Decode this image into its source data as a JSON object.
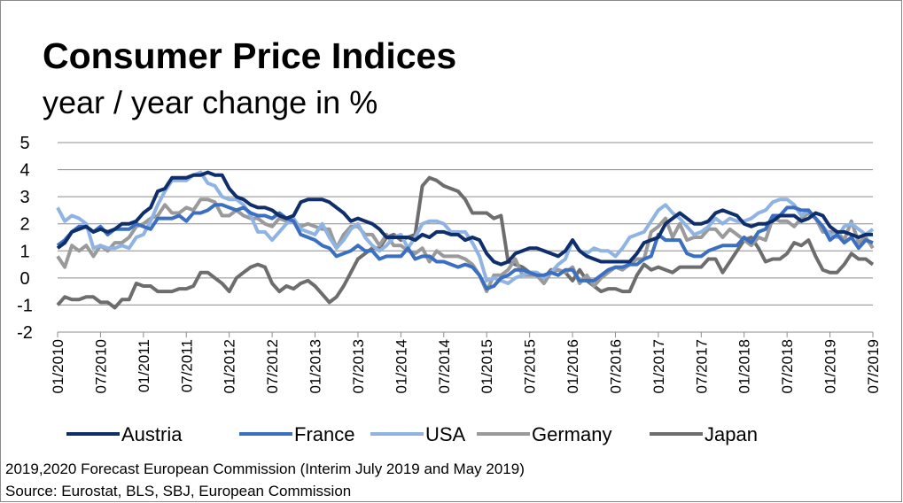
{
  "chart_data": {
    "type": "line",
    "title": "Consumer Price Indices",
    "subtitle": "year / year change in %",
    "notes": [
      "2019,2020 Forecast European Commission (Interim July 2019 and May 2019)",
      "Source: Eurostat, BLS, SBJ, European Commission"
    ],
    "categories": [
      "01/2010",
      null,
      null,
      null,
      null,
      null,
      "07/2010",
      null,
      null,
      null,
      null,
      null,
      "01/2011",
      null,
      null,
      null,
      null,
      null,
      "07/2011",
      null,
      null,
      null,
      null,
      null,
      "01/2012",
      null,
      null,
      null,
      null,
      null,
      "07/2012",
      null,
      null,
      null,
      null,
      null,
      "01/2013",
      null,
      null,
      null,
      null,
      null,
      "07/2013",
      null,
      null,
      null,
      null,
      null,
      "01/2014",
      null,
      null,
      null,
      null,
      null,
      "07/2014",
      null,
      null,
      null,
      null,
      null,
      "01/2015",
      null,
      null,
      null,
      null,
      null,
      "07/2015",
      null,
      null,
      null,
      null,
      null,
      "01/2016",
      null,
      null,
      null,
      null,
      null,
      "07/2016",
      null,
      null,
      null,
      null,
      null,
      "01/2017",
      null,
      null,
      null,
      null,
      null,
      "07/2017",
      null,
      null,
      null,
      null,
      null,
      "01/2018",
      null,
      null,
      null,
      null,
      null,
      "07/2018",
      null,
      null,
      null,
      null,
      null,
      "01/2019",
      null,
      null,
      null,
      null,
      null,
      "07/2019"
    ],
    "ylim": [
      -2,
      5
    ],
    "yticks": [
      -2,
      -1,
      0,
      1,
      2,
      3,
      4,
      5
    ],
    "grid": true,
    "legend": "bottom",
    "series": [
      {
        "name": "Austria",
        "color": "#0f2e6c",
        "values": [
          1.1,
          1.3,
          1.7,
          1.8,
          1.9,
          1.7,
          1.8,
          1.7,
          1.8,
          2.0,
          2.0,
          2.1,
          2.4,
          2.6,
          3.2,
          3.3,
          3.7,
          3.7,
          3.7,
          3.8,
          3.8,
          3.9,
          3.8,
          3.8,
          3.3,
          3.0,
          2.9,
          2.7,
          2.6,
          2.6,
          2.5,
          2.3,
          2.2,
          2.3,
          2.8,
          2.9,
          2.9,
          2.9,
          2.8,
          2.6,
          2.4,
          2.1,
          2.2,
          2.1,
          2.0,
          1.8,
          1.5,
          1.5,
          1.5,
          1.5,
          1.4,
          1.6,
          1.5,
          1.7,
          1.7,
          1.6,
          1.6,
          1.4,
          1.5,
          1.4,
          0.9,
          0.6,
          0.5,
          0.6,
          0.9,
          1.0,
          1.1,
          1.1,
          1.0,
          0.9,
          0.8,
          1.0,
          1.4,
          1.0,
          0.8,
          0.7,
          0.6,
          0.6,
          0.6,
          0.6,
          0.6,
          0.9,
          1.3,
          1.4,
          1.5,
          2.0,
          2.2,
          2.4,
          2.2,
          2.0,
          2.0,
          2.1,
          2.4,
          2.5,
          2.4,
          2.3,
          2.0,
          1.9,
          2.0,
          2.0,
          2.1,
          2.3,
          2.3,
          2.3,
          2.1,
          2.2,
          2.4,
          2.3,
          1.9,
          1.7,
          1.7,
          1.6,
          1.5,
          1.6,
          1.6
        ]
      },
      {
        "name": "France",
        "color": "#3b6fc2",
        "values": [
          1.2,
          1.4,
          1.7,
          1.9,
          1.9,
          1.7,
          1.9,
          1.6,
          1.8,
          1.8,
          1.8,
          2.0,
          1.9,
          1.8,
          2.2,
          2.2,
          2.2,
          2.3,
          2.1,
          2.4,
          2.4,
          2.5,
          2.7,
          2.7,
          2.6,
          2.5,
          2.6,
          2.4,
          2.3,
          2.3,
          2.2,
          2.4,
          2.2,
          2.1,
          1.6,
          1.5,
          1.4,
          1.2,
          1.1,
          0.8,
          0.9,
          1.0,
          1.2,
          1.0,
          1.0,
          0.7,
          0.8,
          0.8,
          0.8,
          1.1,
          0.7,
          0.8,
          0.8,
          0.6,
          0.6,
          0.5,
          0.4,
          0.5,
          0.4,
          0.1,
          -0.4,
          -0.3,
          0.0,
          0.1,
          0.3,
          0.3,
          0.2,
          0.1,
          0.1,
          0.2,
          0.1,
          0.3,
          0.3,
          -0.1,
          -0.1,
          -0.1,
          0.1,
          0.3,
          0.4,
          0.4,
          0.5,
          0.5,
          0.7,
          0.8,
          1.6,
          1.4,
          1.4,
          1.4,
          0.9,
          0.8,
          0.8,
          1.0,
          1.1,
          1.2,
          1.2,
          1.2,
          1.5,
          1.3,
          1.7,
          1.8,
          2.3,
          2.3,
          2.6,
          2.6,
          2.5,
          2.5,
          2.2,
          1.9,
          1.4,
          1.6,
          1.3,
          1.5,
          1.1,
          1.4,
          1.3
        ]
      },
      {
        "name": "USA",
        "color": "#8fb3e2",
        "values": [
          2.6,
          2.1,
          2.3,
          2.2,
          2.0,
          1.1,
          1.2,
          1.1,
          1.1,
          1.2,
          1.1,
          1.5,
          1.6,
          2.1,
          2.7,
          3.2,
          3.6,
          3.6,
          3.6,
          3.8,
          3.9,
          3.5,
          3.4,
          3.0,
          2.9,
          2.9,
          2.7,
          2.3,
          1.7,
          1.7,
          1.4,
          1.7,
          2.0,
          2.2,
          1.8,
          1.7,
          1.6,
          2.0,
          1.5,
          1.1,
          1.4,
          1.8,
          2.0,
          1.5,
          1.2,
          1.0,
          1.2,
          1.5,
          1.6,
          1.1,
          1.5,
          2.0,
          2.1,
          2.1,
          2.0,
          1.7,
          1.7,
          1.7,
          1.3,
          0.8,
          -0.1,
          0.0,
          -0.1,
          -0.2,
          0.0,
          0.1,
          0.2,
          0.2,
          0.0,
          0.2,
          0.5,
          0.7,
          1.4,
          1.0,
          0.9,
          1.1,
          1.0,
          1.0,
          0.8,
          1.1,
          1.5,
          1.6,
          1.7,
          2.1,
          2.5,
          2.7,
          2.4,
          2.2,
          1.9,
          1.6,
          1.7,
          1.9,
          2.2,
          2.0,
          2.2,
          2.1,
          2.1,
          2.2,
          2.4,
          2.5,
          2.8,
          2.9,
          2.9,
          2.7,
          2.3,
          2.5,
          2.2,
          1.9,
          1.6,
          1.5,
          1.9,
          2.0,
          1.8,
          1.6,
          1.8
        ]
      },
      {
        "name": "Germany",
        "color": "#9a9a9a",
        "values": [
          0.8,
          0.4,
          1.2,
          1.0,
          1.2,
          0.8,
          1.2,
          1.0,
          1.3,
          1.3,
          1.5,
          1.9,
          2.0,
          2.2,
          2.3,
          2.7,
          2.4,
          2.4,
          2.6,
          2.5,
          2.9,
          2.9,
          2.8,
          2.3,
          2.3,
          2.5,
          2.3,
          2.2,
          2.2,
          2.0,
          1.9,
          2.2,
          2.1,
          2.1,
          1.9,
          2.0,
          1.9,
          1.8,
          1.8,
          1.1,
          1.6,
          1.9,
          1.9,
          1.6,
          1.6,
          1.2,
          1.6,
          1.2,
          1.2,
          1.0,
          0.9,
          1.1,
          0.6,
          1.0,
          0.8,
          0.8,
          0.8,
          0.7,
          0.5,
          0.1,
          -0.5,
          0.1,
          0.1,
          0.3,
          0.7,
          0.1,
          0.1,
          0.1,
          -0.2,
          0.2,
          0.3,
          0.2,
          0.4,
          -0.2,
          0.1,
          -0.3,
          0.0,
          0.2,
          0.4,
          0.3,
          0.5,
          0.7,
          0.7,
          1.7,
          1.9,
          2.2,
          1.5,
          2.0,
          1.4,
          1.5,
          1.5,
          1.8,
          1.8,
          1.5,
          1.8,
          1.6,
          1.4,
          1.2,
          1.5,
          1.4,
          2.2,
          2.1,
          2.1,
          1.9,
          2.2,
          2.4,
          2.2,
          1.7,
          1.7,
          1.7,
          1.4,
          2.1,
          1.3,
          1.5,
          1.1
        ]
      },
      {
        "name": "Japan",
        "color": "#6d6d6d",
        "values": [
          -1.0,
          -0.7,
          -0.8,
          -0.8,
          -0.7,
          -0.7,
          -0.9,
          -0.9,
          -1.1,
          -0.8,
          -0.8,
          -0.2,
          -0.3,
          -0.3,
          -0.5,
          -0.5,
          -0.5,
          -0.4,
          -0.4,
          -0.3,
          0.2,
          0.2,
          0.0,
          -0.2,
          -0.5,
          0.0,
          0.2,
          0.4,
          0.5,
          0.4,
          -0.2,
          -0.5,
          -0.3,
          -0.4,
          -0.2,
          -0.1,
          -0.3,
          -0.6,
          -0.9,
          -0.7,
          -0.3,
          0.2,
          0.7,
          0.9,
          1.1,
          1.1,
          1.5,
          1.6,
          1.4,
          1.5,
          1.6,
          3.4,
          3.7,
          3.6,
          3.4,
          3.3,
          3.2,
          2.9,
          2.4,
          2.4,
          2.4,
          2.2,
          2.3,
          0.6,
          0.5,
          0.4,
          0.2,
          0.2,
          0.0,
          0.3,
          0.3,
          0.2,
          -0.1,
          0.3,
          -0.1,
          -0.3,
          -0.5,
          -0.4,
          -0.4,
          -0.5,
          -0.5,
          0.1,
          0.5,
          0.3,
          0.4,
          0.3,
          0.2,
          0.4,
          0.4,
          0.4,
          0.4,
          0.7,
          0.7,
          0.2,
          0.6,
          1.0,
          1.4,
          1.5,
          1.1,
          0.6,
          0.7,
          0.7,
          0.9,
          1.3,
          1.2,
          1.4,
          0.8,
          0.3,
          0.2,
          0.2,
          0.5,
          0.9,
          0.7,
          0.7,
          0.5
        ]
      }
    ]
  }
}
